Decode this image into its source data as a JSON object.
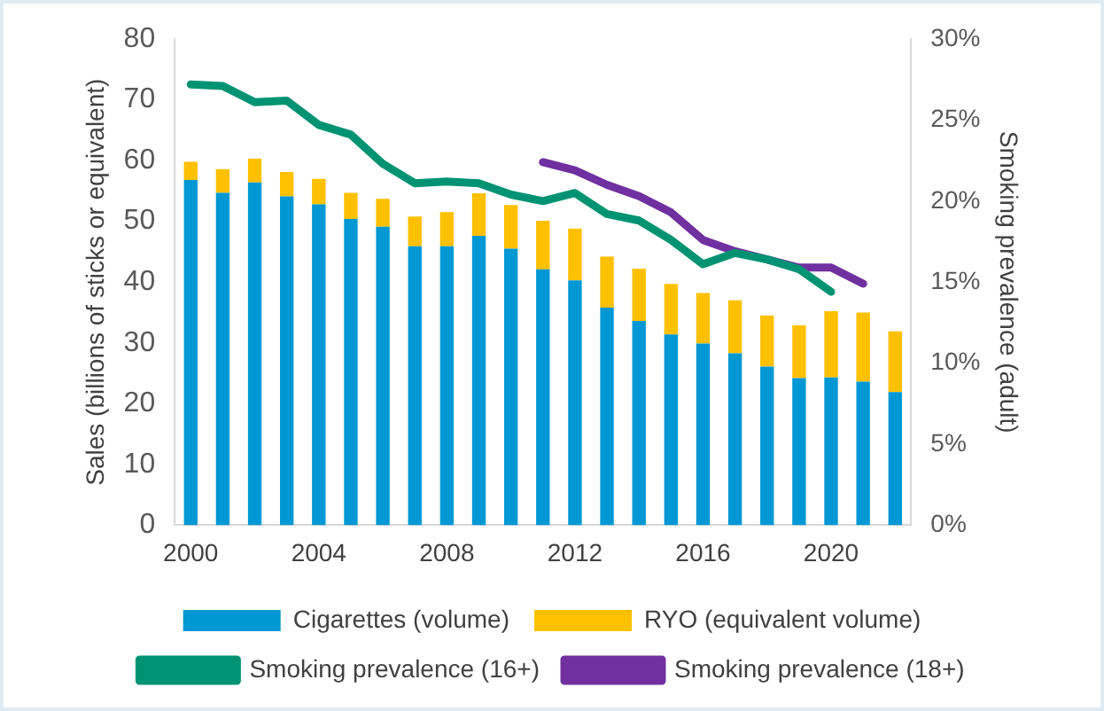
{
  "chart_data": {
    "type": "bar",
    "stacked": true,
    "ylabel": "Sales (billions of sticks or equivalent)",
    "y2label": "Smoking prevalence (adult)",
    "categories": [
      "2000",
      null,
      null,
      null,
      "2004",
      null,
      null,
      null,
      "2008",
      null,
      null,
      null,
      "2012",
      null,
      null,
      null,
      "2016",
      null,
      null,
      null,
      "2020",
      null,
      null
    ],
    "series": [
      {
        "name": "Cigarettes (volume)",
        "color": "#0098d4",
        "values": [
          56.8,
          54.7,
          56.4,
          54.1,
          52.8,
          50.4,
          49.1,
          45.9,
          45.9,
          47.6,
          45.5,
          42.1,
          40.3,
          35.8,
          33.6,
          31.4,
          29.9,
          28.3,
          26.1,
          24.2,
          24.3,
          23.6,
          21.9
        ]
      },
      {
        "name": "RYO (equivalent volume)",
        "color": "#ffc000",
        "values": [
          3.0,
          3.9,
          3.9,
          4.0,
          4.2,
          4.3,
          4.6,
          4.9,
          5.6,
          7.0,
          7.2,
          8.0,
          8.5,
          8.4,
          8.6,
          8.3,
          8.3,
          8.7,
          8.4,
          8.7,
          10.9,
          11.4,
          10.0
        ]
      },
      {
        "name": "Smoking prevalence (16+)",
        "type": "line",
        "axis": "y2",
        "color": "#009373",
        "values": [
          27.2,
          27.1,
          26.1,
          26.2,
          24.7,
          24.1,
          22.3,
          21.1,
          21.2,
          21.1,
          20.4,
          20.0,
          20.5,
          19.2,
          18.8,
          17.6,
          16.1,
          16.8,
          16.4,
          15.8,
          14.4,
          null,
          null
        ]
      },
      {
        "name": "Smoking prevalence (18+)",
        "type": "line",
        "axis": "y2",
        "color": "#7030a0",
        "values": [
          null,
          null,
          null,
          null,
          null,
          null,
          null,
          null,
          null,
          null,
          null,
          22.4,
          21.9,
          21.0,
          20.3,
          19.3,
          17.6,
          16.9,
          16.4,
          15.9,
          15.9,
          14.9,
          null
        ]
      }
    ],
    "ylim": [
      0,
      80
    ],
    "yticks": [
      0,
      10,
      20,
      30,
      40,
      50,
      60,
      70,
      80
    ],
    "y2lim": [
      0,
      30
    ],
    "y2ticks": [
      {
        "value": 0,
        "label": "0%"
      },
      {
        "value": 5,
        "label": "5%"
      },
      {
        "value": 10,
        "label": "10%"
      },
      {
        "value": 15,
        "label": "15%"
      },
      {
        "value": 20,
        "label": "20%"
      },
      {
        "value": 25,
        "label": "25%"
      },
      {
        "value": 30,
        "label": "30%"
      }
    ],
    "grid": false,
    "legend": "bottom",
    "marker": "none",
    "line_style": "solid"
  }
}
